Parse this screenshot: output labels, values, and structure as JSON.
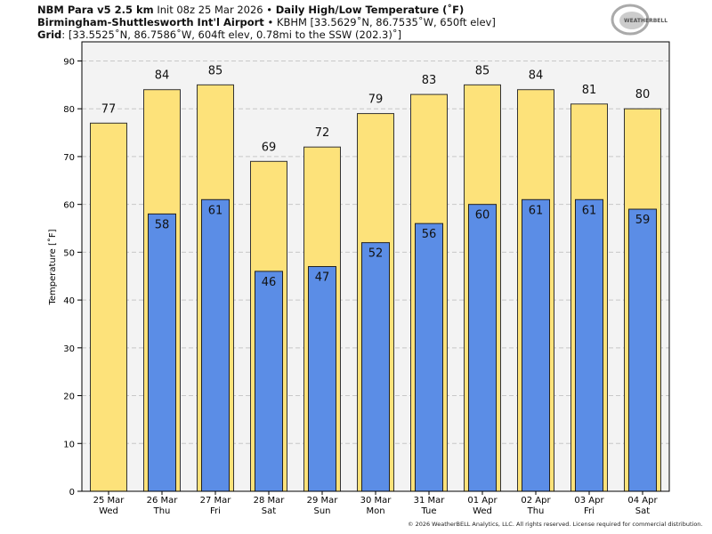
{
  "header": {
    "model": "NBM Para v5 2.5 km",
    "init": "Init 08z 25 Mar 2026",
    "sep": "•",
    "product": "Daily High/Low Temperature (˚F)",
    "station_name": "Birmingham-Shuttlesworth Int'l Airport",
    "station_info": "KBHM [33.5629˚N, 86.7535˚W, 650ft elev]",
    "grid_label": "Grid",
    "grid_info": ": [33.5525˚N, 86.7586˚W, 604ft elev, 0.78mi to the SSW (202.3)˚]"
  },
  "logo": {
    "text": "WeatherBELL"
  },
  "footer": "© 2026 WeatherBELL Analytics, LLC. All rights reserved. License required for commercial distribution.",
  "chart_data": {
    "type": "bar",
    "title": "Daily High/Low Temperature (˚F)",
    "ylabel": "Temperature [˚F]",
    "xlabel": "",
    "ylim": [
      0,
      94
    ],
    "yticks": [
      0,
      10,
      20,
      30,
      40,
      50,
      60,
      70,
      80,
      90
    ],
    "grid": true,
    "categories": [
      {
        "date": "25 Mar",
        "day": "Wed"
      },
      {
        "date": "26 Mar",
        "day": "Thu"
      },
      {
        "date": "27 Mar",
        "day": "Fri"
      },
      {
        "date": "28 Mar",
        "day": "Sat"
      },
      {
        "date": "29 Mar",
        "day": "Sun"
      },
      {
        "date": "30 Mar",
        "day": "Mon"
      },
      {
        "date": "31 Mar",
        "day": "Tue"
      },
      {
        "date": "01 Apr",
        "day": "Wed"
      },
      {
        "date": "02 Apr",
        "day": "Thu"
      },
      {
        "date": "03 Apr",
        "day": "Fri"
      },
      {
        "date": "04 Apr",
        "day": "Sat"
      }
    ],
    "series": [
      {
        "key": "high",
        "color": "#fde27a",
        "values": [
          77,
          84,
          85,
          69,
          72,
          79,
          83,
          85,
          84,
          81,
          80
        ]
      },
      {
        "key": "low",
        "color": "#5b8de6",
        "values": [
          null,
          58,
          61,
          46,
          47,
          52,
          56,
          60,
          61,
          61,
          59
        ]
      }
    ],
    "background": "#f3f3f3"
  }
}
